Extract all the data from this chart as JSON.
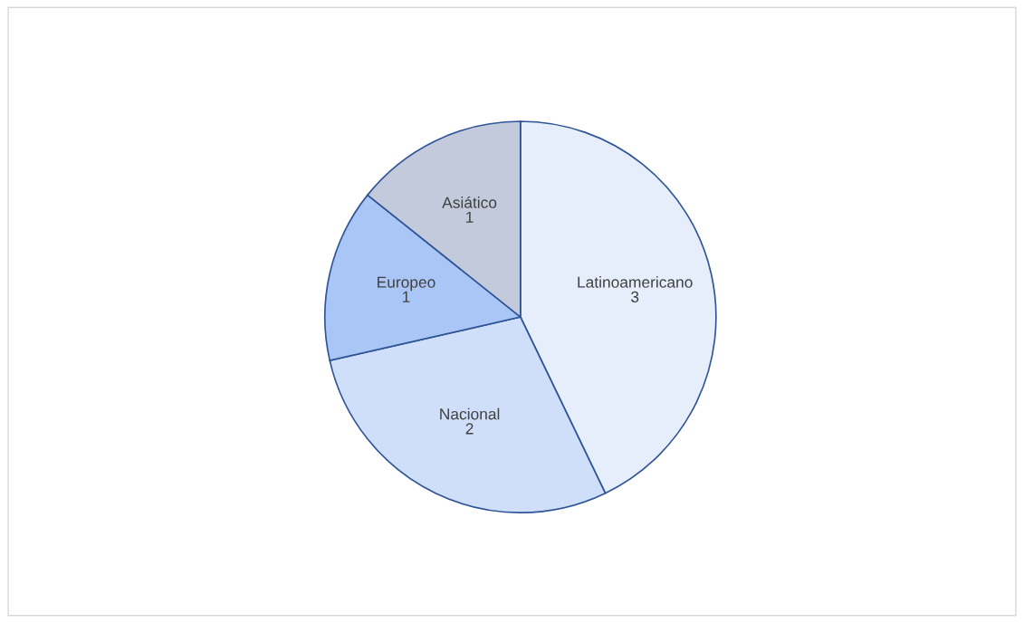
{
  "chart_data": {
    "type": "pie",
    "categories": [
      "Latinoamericano",
      "Nacional",
      "Europeo",
      "Asiático"
    ],
    "values": [
      3,
      2,
      1,
      1
    ],
    "colors": [
      "#e6eefc",
      "#cfdffa",
      "#a9c6f6",
      "#c2cadb"
    ],
    "data_labels": true,
    "legend": false
  }
}
